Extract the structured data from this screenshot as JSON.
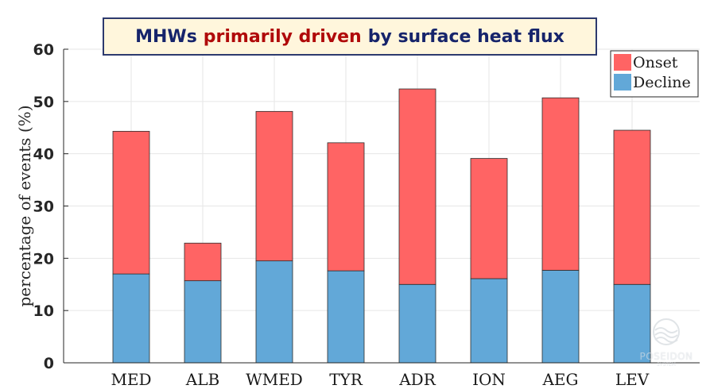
{
  "title": {
    "part1": "MHWs",
    "highlight": "primarily driven",
    "part2": "by surface heat flux"
  },
  "watermark": {
    "name": "POSEIDON",
    "sub": "SYSTEM"
  },
  "colors": {
    "onset": "#ff6464",
    "decline": "#62a8d8",
    "title_text": "#16246b",
    "title_highlight": "#b00a0a",
    "title_bg": "#fff6dc"
  },
  "chart_data": {
    "type": "bar",
    "stacked": true,
    "categories": [
      "MED",
      "ALB",
      "WMED",
      "TYR",
      "ADR",
      "ION",
      "AEG",
      "LEV"
    ],
    "series": [
      {
        "name": "Decline",
        "values": [
          17.0,
          15.7,
          19.5,
          17.6,
          15.0,
          16.1,
          17.7,
          15.0
        ]
      },
      {
        "name": "Onset",
        "values": [
          27.3,
          7.2,
          28.6,
          24.5,
          37.4,
          23.0,
          33.0,
          29.5
        ]
      }
    ],
    "totals": [
      44.3,
      22.9,
      48.1,
      42.1,
      52.4,
      39.1,
      50.7,
      44.5
    ],
    "xlabel": "",
    "ylabel": "percentage of events (%)",
    "ylim": [
      0,
      60
    ],
    "yticks": [
      0,
      10,
      20,
      30,
      40,
      50,
      60
    ],
    "grid": true,
    "legend": {
      "placement": "top-right",
      "entries": [
        "Onset",
        "Decline"
      ]
    }
  }
}
